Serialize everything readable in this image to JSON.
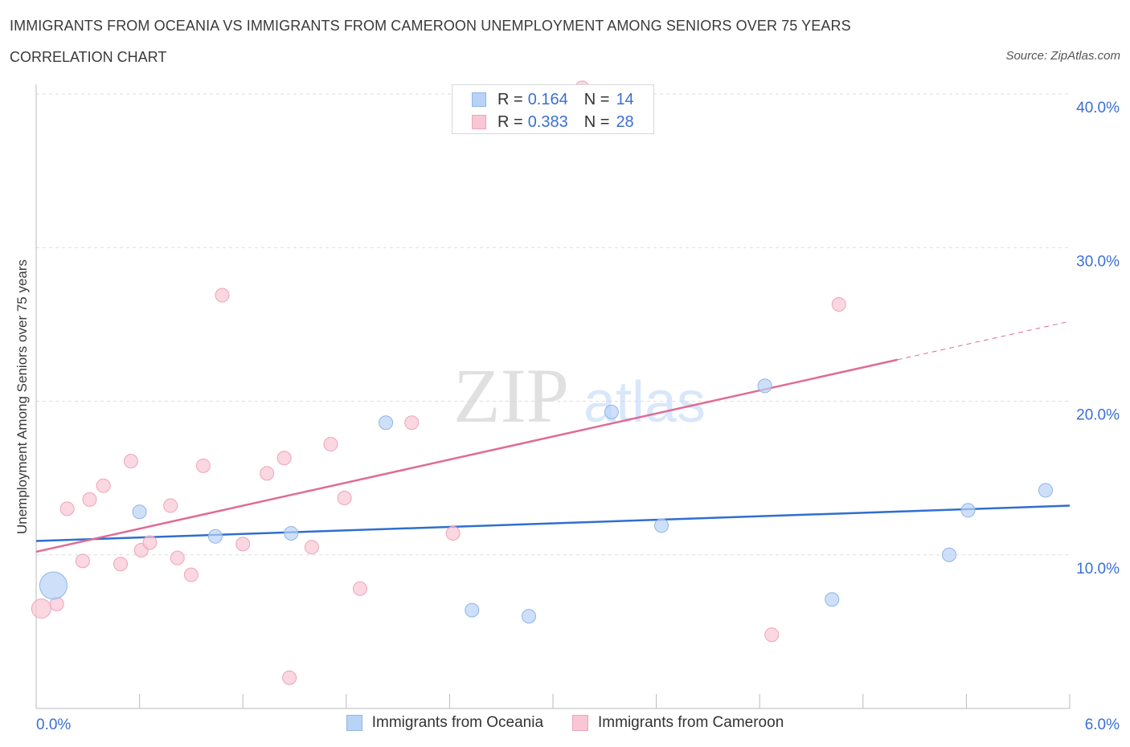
{
  "header": {
    "title": "IMMIGRANTS FROM OCEANIA VS IMMIGRANTS FROM CAMEROON UNEMPLOYMENT AMONG SENIORS OVER 75 YEARS",
    "subtitle": "CORRELATION CHART",
    "source": "Source: ZipAtlas.com"
  },
  "watermark": {
    "zip": "ZIP",
    "atlas": "atlas"
  },
  "legend": {
    "series": [
      {
        "r_label": "R =",
        "r_value": "0.164",
        "n_label": "N =",
        "n_value": "14"
      },
      {
        "r_label": "R =",
        "r_value": "0.383",
        "n_label": "N =",
        "n_value": "28"
      }
    ]
  },
  "chart_data": {
    "type": "scatter",
    "title": "IMMIGRANTS FROM OCEANIA VS IMMIGRANTS FROM CAMEROON UNEMPLOYMENT AMONG SENIORS OVER 75 YEARS",
    "subtitle": "CORRELATION CHART",
    "xlabel": "",
    "ylabel": "Unemployment Among Seniors over 75 years",
    "xlim": [
      0,
      6
    ],
    "ylim": [
      0,
      40
    ],
    "x_tick_labels": [
      "0.0%",
      "6.0%"
    ],
    "y_tick_labels": [
      "10.0%",
      "20.0%",
      "30.0%",
      "40.0%"
    ],
    "y_ticks": [
      10,
      20,
      30,
      40
    ],
    "grid": true,
    "colors": {
      "oceania_fill": "#b9d3f7",
      "oceania_stroke": "#8fb4e6",
      "oceania_line": "#2f6fcf",
      "cameroon_fill": "#f8c6d4",
      "cameroon_stroke": "#eea4ba",
      "cameroon_line": "#e06b94",
      "tick_label": "#3b6fd4",
      "grid": "#dddddd"
    },
    "series": [
      {
        "name": "Immigrants from Oceania",
        "R": 0.164,
        "N": 14,
        "trend": {
          "x": [
            0,
            6
          ],
          "y": [
            10.9,
            13.2
          ]
        },
        "points": [
          {
            "x": 0.1,
            "y": 8.0,
            "size": 3
          },
          {
            "x": 0.6,
            "y": 12.8,
            "size": 1
          },
          {
            "x": 1.04,
            "y": 11.2,
            "size": 1
          },
          {
            "x": 1.48,
            "y": 11.4,
            "size": 1
          },
          {
            "x": 2.03,
            "y": 18.6,
            "size": 1
          },
          {
            "x": 2.53,
            "y": 6.4,
            "size": 1
          },
          {
            "x": 2.86,
            "y": 6.0,
            "size": 1
          },
          {
            "x": 3.34,
            "y": 19.3,
            "size": 1
          },
          {
            "x": 3.63,
            "y": 11.9,
            "size": 1
          },
          {
            "x": 4.23,
            "y": 21.0,
            "size": 1
          },
          {
            "x": 4.62,
            "y": 7.1,
            "size": 1
          },
          {
            "x": 5.3,
            "y": 10.0,
            "size": 1
          },
          {
            "x": 5.41,
            "y": 12.9,
            "size": 1
          },
          {
            "x": 5.86,
            "y": 14.2,
            "size": 1
          }
        ]
      },
      {
        "name": "Immigrants from Cameroon",
        "R": 0.383,
        "N": 28,
        "trend": {
          "x": [
            0,
            5.0
          ],
          "y": [
            10.2,
            22.7
          ]
        },
        "trend_dashed": {
          "x": [
            5.0,
            6.0
          ],
          "y": [
            22.7,
            25.2
          ]
        },
        "points": [
          {
            "x": 0.03,
            "y": 6.5,
            "size": 2
          },
          {
            "x": 0.12,
            "y": 6.8,
            "size": 1
          },
          {
            "x": 0.18,
            "y": 13.0,
            "size": 1
          },
          {
            "x": 0.27,
            "y": 9.6,
            "size": 1
          },
          {
            "x": 0.31,
            "y": 13.6,
            "size": 1
          },
          {
            "x": 0.39,
            "y": 14.5,
            "size": 1
          },
          {
            "x": 0.49,
            "y": 9.4,
            "size": 1
          },
          {
            "x": 0.55,
            "y": 16.1,
            "size": 1
          },
          {
            "x": 0.61,
            "y": 10.3,
            "size": 1
          },
          {
            "x": 0.66,
            "y": 10.8,
            "size": 1
          },
          {
            "x": 0.78,
            "y": 13.2,
            "size": 1
          },
          {
            "x": 0.82,
            "y": 9.8,
            "size": 1
          },
          {
            "x": 0.9,
            "y": 8.7,
            "size": 1
          },
          {
            "x": 0.97,
            "y": 15.8,
            "size": 1
          },
          {
            "x": 1.08,
            "y": 26.9,
            "size": 1
          },
          {
            "x": 1.2,
            "y": 10.7,
            "size": 1
          },
          {
            "x": 1.34,
            "y": 15.3,
            "size": 1
          },
          {
            "x": 1.44,
            "y": 16.3,
            "size": 1
          },
          {
            "x": 1.47,
            "y": 2.0,
            "size": 1
          },
          {
            "x": 1.6,
            "y": 10.5,
            "size": 1
          },
          {
            "x": 1.71,
            "y": 17.2,
            "size": 1
          },
          {
            "x": 1.79,
            "y": 13.7,
            "size": 1
          },
          {
            "x": 1.88,
            "y": 7.8,
            "size": 1
          },
          {
            "x": 2.18,
            "y": 18.6,
            "size": 1
          },
          {
            "x": 2.42,
            "y": 11.4,
            "size": 1
          },
          {
            "x": 3.17,
            "y": 40.4,
            "size": 1
          },
          {
            "x": 4.27,
            "y": 4.8,
            "size": 1
          },
          {
            "x": 4.66,
            "y": 26.3,
            "size": 1
          }
        ]
      }
    ]
  },
  "bottom_legend": [
    {
      "label": "Immigrants from Oceania"
    },
    {
      "label": "Immigrants from Cameroon"
    }
  ]
}
